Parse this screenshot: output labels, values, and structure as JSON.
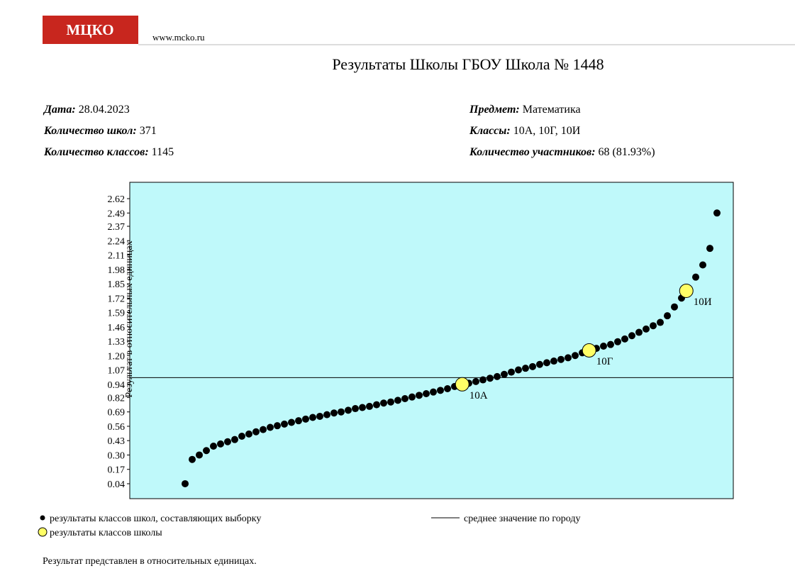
{
  "header": {
    "logo": "МЦКО",
    "url": "www.mcko.ru",
    "title": "Результаты Школы ГБОУ Школа № 1448"
  },
  "info": {
    "left": [
      {
        "label": "Дата:",
        "value": "28.04.2023"
      },
      {
        "label": "Количество школ:",
        "value": "371"
      },
      {
        "label": "Количество классов:",
        "value": "1145"
      }
    ],
    "right": [
      {
        "label": "Предмет:",
        "value": "Математика"
      },
      {
        "label": "Классы:",
        "value": "10А, 10Г, 10И"
      },
      {
        "label": "Количество участников:",
        "value": "68 (81.93%)"
      }
    ]
  },
  "chart_data": {
    "type": "scatter",
    "y_label": "Результат в относительных единицах",
    "background": "#bff9fa",
    "ylim": [
      -0.095,
      2.768
    ],
    "xlim": [
      1,
      1145
    ],
    "yticks": [
      0.04,
      0.17,
      {
        "value": 0.3,
        "label": "0.30"
      },
      0.43,
      0.56,
      0.69,
      0.82,
      0.94,
      1.07,
      {
        "value": 1.2,
        "label": "1.20"
      },
      1.33,
      1.46,
      1.59,
      1.72,
      1.85,
      1.98,
      2.11,
      2.24,
      2.37,
      2.49,
      2.62
    ],
    "sample": {
      "name": "результаты классов школ, составляющих выборку",
      "color": "#000000",
      "values": [
        0.04,
        0.26,
        0.3,
        0.34,
        0.38,
        0.4,
        0.42,
        0.44,
        0.47,
        0.49,
        0.51,
        0.53,
        0.55,
        0.565,
        0.58,
        0.595,
        0.61,
        0.625,
        0.64,
        0.65,
        0.665,
        0.68,
        0.69,
        0.705,
        0.72,
        0.73,
        0.74,
        0.755,
        0.77,
        0.78,
        0.795,
        0.81,
        0.825,
        0.84,
        0.855,
        0.87,
        0.885,
        0.9,
        0.92,
        0.935,
        0.95,
        0.965,
        0.98,
        0.995,
        1.01,
        1.03,
        1.05,
        1.07,
        1.085,
        1.1,
        1.12,
        1.135,
        1.15,
        1.165,
        1.18,
        1.2,
        1.225,
        1.245,
        1.265,
        1.285,
        1.3,
        1.325,
        1.35,
        1.38,
        1.41,
        1.44,
        1.47,
        1.5,
        1.56,
        1.64,
        1.72,
        1.81,
        1.91,
        2.02,
        2.17,
        2.49
      ]
    },
    "mean": {
      "name": "среднее значение по городу",
      "value": 1.0,
      "color": "#000000"
    },
    "school": {
      "name": "результаты классов школы",
      "color": "#ffff66",
      "labels": [
        "10А",
        "10Г",
        "10И"
      ],
      "x": [
        597,
        870,
        1079
      ],
      "values": [
        0.94,
        1.247,
        1.786
      ]
    }
  },
  "footer": "Результат представлен в относительных единицах."
}
